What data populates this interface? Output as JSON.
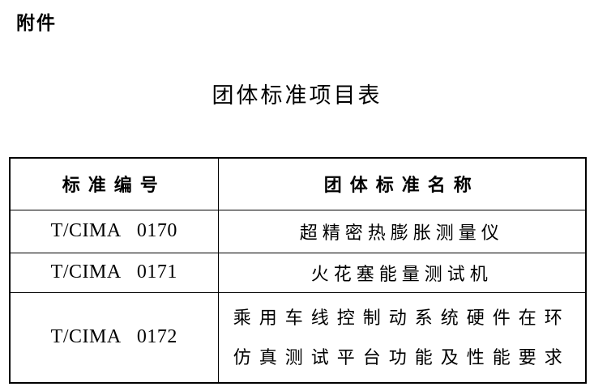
{
  "page": {
    "attachment_label": "附件",
    "title": "团体标准项目表"
  },
  "table": {
    "headers": [
      "标准编号",
      "团体标准名称"
    ],
    "rows": [
      {
        "code": "T/CIMA 0170",
        "name": "超精密热膨胀测量仪"
      },
      {
        "code": "T/CIMA 0171",
        "name": "火花塞能量测试机"
      },
      {
        "code": "T/CIMA 0172",
        "name": "乘用车线控制动系统硬件在环\n仿真测试平台功能及性能要求"
      }
    ]
  },
  "colors": {
    "text": "#000000",
    "border": "#000000",
    "background": "#ffffff"
  }
}
